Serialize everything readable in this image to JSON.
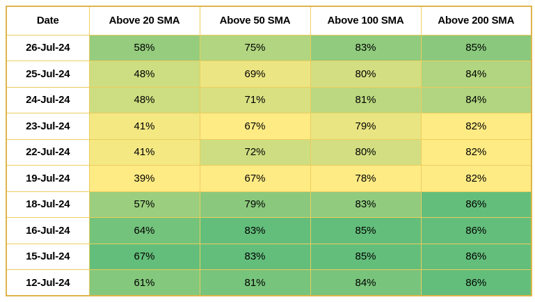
{
  "table": {
    "name": "percent-of-stocks-above-sma-heatmap",
    "columns": [
      "Date",
      "Above 20 SMA",
      "Above 50 SMA",
      "Above 100 SMA",
      "Above 200 SMA"
    ],
    "unit": "%"
  },
  "chart_data": {
    "type": "heatmap",
    "title": "",
    "categories": [
      "26-Jul-24",
      "25-Jul-24",
      "24-Jul-24",
      "23-Jul-24",
      "22-Jul-24",
      "19-Jul-24",
      "18-Jul-24",
      "16-Jul-24",
      "15-Jul-24",
      "12-Jul-24"
    ],
    "series": [
      {
        "name": "Above 20 SMA",
        "values": [
          58,
          48,
          48,
          41,
          41,
          39,
          57,
          64,
          67,
          61
        ]
      },
      {
        "name": "Above 50 SMA",
        "values": [
          75,
          69,
          71,
          67,
          72,
          67,
          79,
          83,
          83,
          81
        ]
      },
      {
        "name": "Above 100 SMA",
        "values": [
          83,
          80,
          81,
          79,
          80,
          78,
          83,
          85,
          85,
          84
        ]
      },
      {
        "name": "Above 200 SMA",
        "values": [
          85,
          84,
          84,
          82,
          82,
          82,
          86,
          86,
          86,
          86
        ]
      }
    ],
    "unit": "%",
    "color_scale": {
      "low": "#FFEB84",
      "high": "#63BE7B",
      "scope": "per-column"
    },
    "layout_hints": {
      "grid": "on",
      "row_label_column": "Date",
      "cell_background": "value-mapped"
    }
  },
  "colors": {
    "page_background": "#FFFFFF",
    "header_background": "#FFFFFF",
    "date_column_background": "#FFFFFF",
    "border_inner": "#ECCD5E",
    "border_outer": "#DFB44A",
    "text": "#000000",
    "heatmap_low": "#FFEB84",
    "heatmap_high": "#63BE7B"
  }
}
